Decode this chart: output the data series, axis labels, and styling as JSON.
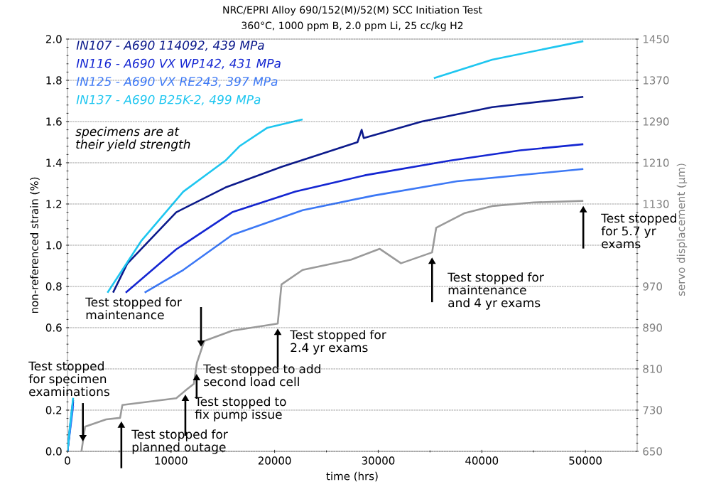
{
  "chart_data": {
    "type": "line",
    "title": "NRC/EPRI Alloy 690/152(M)/52(M) SCC Initiation Test",
    "subtitle": "360°C, 1000 ppm B, 2.0 ppm Li, 25 cc/kg H2",
    "xlabel": "time (hrs)",
    "ylabel": "non-referenced strain (%)",
    "y2label": "servo displacement (µm)",
    "xlim": [
      0,
      55000
    ],
    "xticks": [
      0,
      10000,
      20000,
      30000,
      40000,
      50000
    ],
    "ylim": [
      0,
      2.0
    ],
    "yticks": [
      {
        "value": 0,
        "label": "0.0"
      },
      0.2,
      {
        "value": 0.4,
        "label": null
      },
      0.6,
      0.8,
      {
        "value": 1,
        "label": "1.0"
      },
      1.2,
      1.4,
      1.6,
      1.8,
      {
        "value": 2,
        "label": "2.0"
      }
    ],
    "y2lim": [
      650,
      1450
    ],
    "y2ticks": [
      650,
      730,
      810,
      890,
      970,
      {
        "value": 1050,
        "label": null
      },
      1130,
      1210,
      1290,
      1370,
      1450
    ],
    "grid": "y",
    "legend": "top left",
    "series": [
      {
        "name": "IN107 - A690 114092, 439 MPa",
        "color": "#0c1a8c",
        "x": [
          0,
          250,
          550,
          1200,
          4400,
          5760,
          10500,
          15240,
          20660,
          28000,
          28400,
          28600,
          34200,
          41000,
          49800
        ],
        "values": [
          0,
          0.12,
          0.25,
          null,
          0.77,
          0.91,
          1.16,
          1.28,
          1.38,
          1.5,
          1.56,
          1.52,
          1.6,
          1.67,
          1.72
        ]
      },
      {
        "name": "IN116 - A690 VX WP142, 431 MPa",
        "color": "#1426d2",
        "x": [
          0,
          250,
          550,
          1200,
          5620,
          10500,
          15900,
          22000,
          28800,
          36900,
          43700,
          49800
        ],
        "values": [
          0,
          0.11,
          0.24,
          null,
          0.77,
          0.98,
          1.16,
          1.26,
          1.34,
          1.41,
          1.46,
          1.49
        ]
      },
      {
        "name": "IN125 - A690 VX RE243, 397 MPa",
        "color": "#3c78f5",
        "x": [
          0,
          250,
          550,
          1200,
          7450,
          11180,
          15900,
          22700,
          29470,
          37600,
          49800
        ],
        "values": [
          0,
          0.1,
          0.22,
          null,
          0.77,
          0.88,
          1.05,
          1.17,
          1.24,
          1.31,
          1.37
        ]
      },
      {
        "name": "IN137 - A690 B25K-2, 499 MPa",
        "color": "#1ec6f0",
        "x": [
          0,
          250,
          550,
          1200,
          3860,
          7110,
          11180,
          15240,
          16600,
          19300,
          22700,
          28000,
          35370,
          41000,
          49800
        ],
        "values": [
          0,
          0.13,
          0.26,
          null,
          0.77,
          1.02,
          1.26,
          1.41,
          1.48,
          1.57,
          1.61,
          null,
          1.81,
          1.9,
          1.99
        ]
      },
      {
        "axis": "y2",
        "color": "#9a9a9a",
        "x": [
          1350,
          1700,
          3730,
          5080,
          5300,
          10500,
          11500,
          12200,
          12500,
          13200,
          15900,
          20300,
          20660,
          22700,
          27400,
          30150,
          32200,
          35200,
          35600,
          38300,
          41000,
          45000,
          49800
        ],
        "values": [
          650,
          698,
          712,
          715,
          740,
          753,
          770,
          781,
          822,
          864,
          884,
          898,
          974,
          1002,
          1022,
          1043,
          1015,
          1036,
          1084,
          1112,
          1126,
          1133,
          1136
        ]
      }
    ],
    "annotations": [
      "specimens are at their yield strength",
      "Test stopped for maintenance",
      {
        "text": "Test stopped for specimen examinations",
        "x": 1490,
        "y": 0.048
      },
      {
        "text": "Test stopped for planned outage",
        "x": 5200,
        "y": 0.17
      },
      {
        "text": "Test stopped to fix pump issue",
        "x": 11380,
        "y": 0.3
      },
      {
        "text": "Test stopped to add second load cell",
        "x": 12470,
        "y": 0.4
      },
      {
        "text": "Test stopped for 2.4 yr exams",
        "x": 20300,
        "y": 0.62
      },
      {
        "text": "Test stopped for maintenance and 4 yr exams",
        "x": 35200,
        "y": 0.965
      },
      {
        "text": "Test stopped for 5.7 yr exams",
        "x": 49800,
        "y": 1.215
      }
    ]
  }
}
